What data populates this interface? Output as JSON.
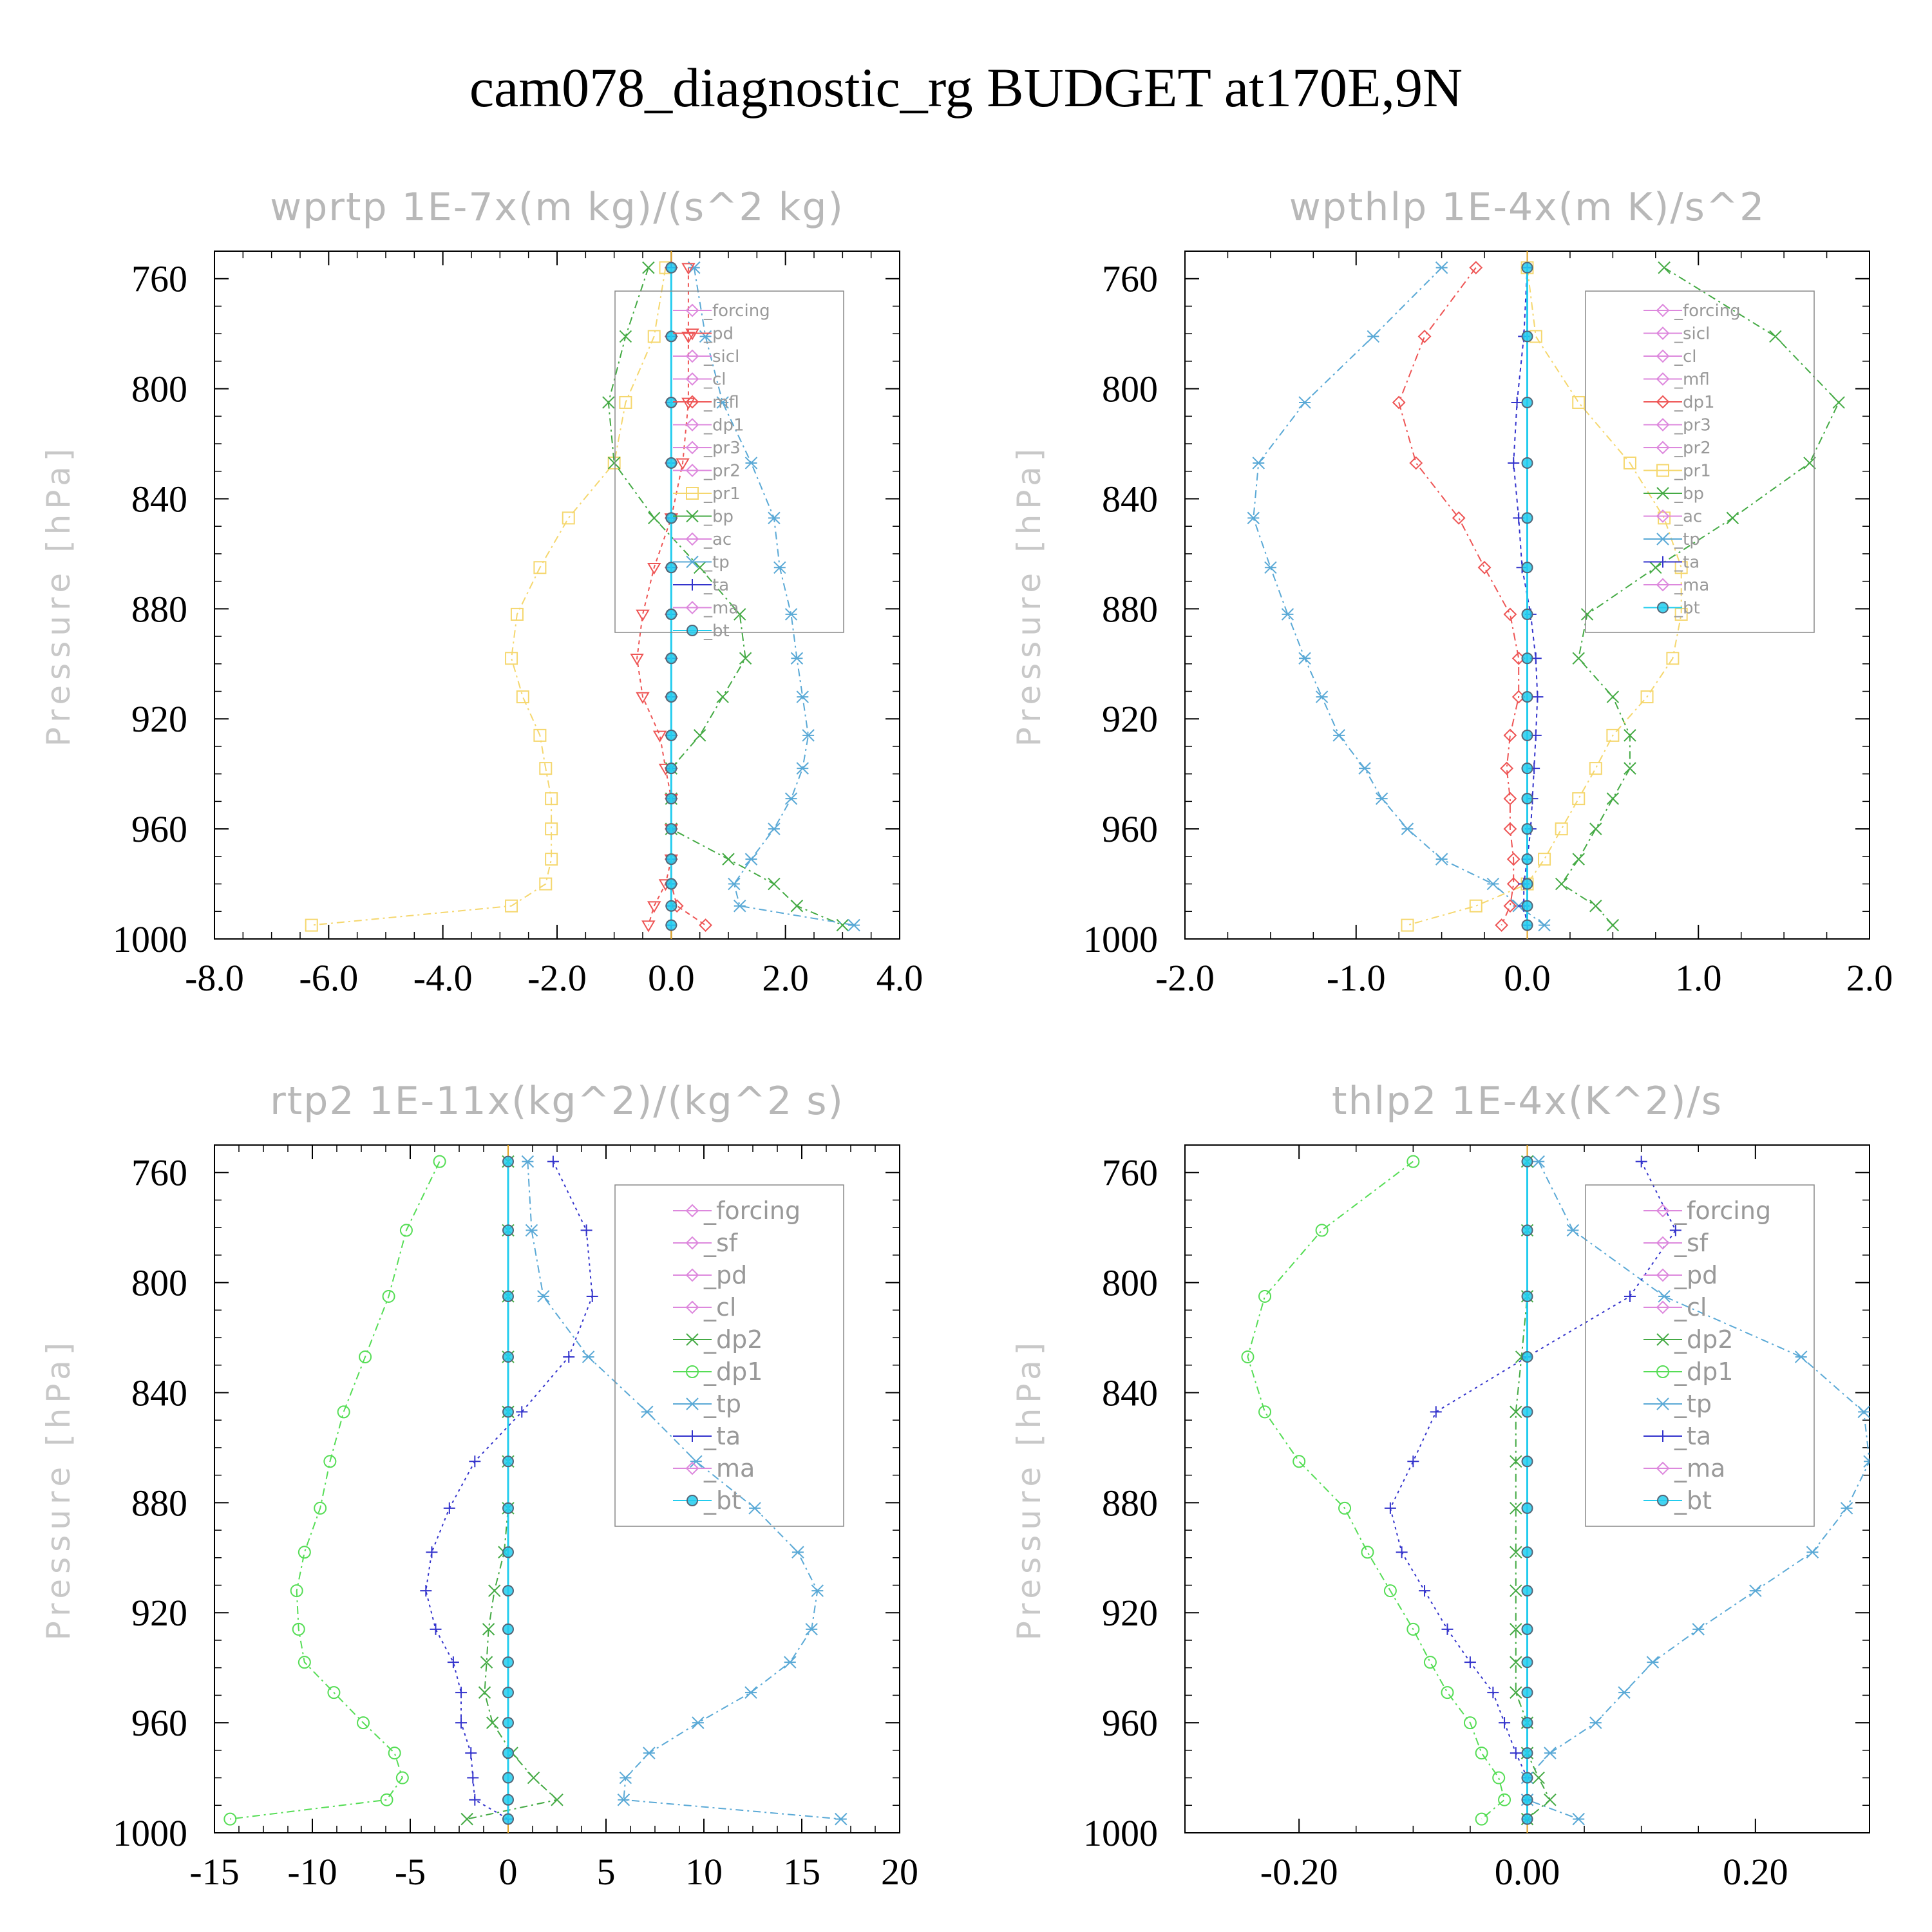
{
  "title": "cam078_diagnostic_rg  BUDGET at170E,9N",
  "ylabel": "Pressure [hPa]",
  "y_ticks": [
    760,
    800,
    840,
    880,
    920,
    960,
    1000
  ],
  "levels": [
    756,
    781,
    805,
    827,
    847,
    865,
    882,
    898,
    912,
    926,
    938,
    949,
    960,
    971,
    980,
    988,
    995
  ],
  "chart_data": [
    {
      "type": "line",
      "title": "wprtp  1E-7x(m kg)/(s^2 kg)",
      "ylabel": "Pressure [hPa]",
      "xlim": [
        -8,
        4
      ],
      "ylim": [
        1000,
        750
      ],
      "x_ticks": [
        "-8.0",
        "-6.0",
        "-4.0",
        "-2.0",
        "0.0",
        "2.0",
        "4.0"
      ],
      "x_tick_values": [
        -8,
        -6,
        -4,
        -2,
        0,
        2,
        4
      ],
      "legend": [
        "_forcing",
        "_pd",
        "_sicl",
        "_cl",
        "_mfl",
        "_dp1",
        "_pr3",
        "_pr2",
        "_pr1",
        "_bp",
        "_ac",
        "_tp",
        "_ta",
        "_ma",
        "_bt"
      ],
      "legend_font": "small",
      "series": [
        {
          "name": "_pr1",
          "color": "#f5d76e",
          "marker": "square",
          "dash": "12 6 3 6",
          "x": [
            -0.1,
            -0.3,
            -0.8,
            -1.0,
            -1.8,
            -2.3,
            -2.7,
            -2.8,
            -2.6,
            -2.3,
            -2.2,
            -2.1,
            -2.1,
            -2.1,
            -2.2,
            -2.8,
            -6.3
          ]
        },
        {
          "name": "_bp",
          "color": "#44aa44",
          "marker": "x",
          "dash": "12 6 3 6",
          "x": [
            -0.4,
            -0.8,
            -1.1,
            -1.0,
            -0.3,
            0.5,
            1.2,
            1.3,
            0.9,
            0.5,
            0.0,
            0.0,
            0.0,
            1.0,
            1.8,
            2.2,
            3.0
          ]
        },
        {
          "name": "_tp",
          "color": "#5aa9d6",
          "marker": "asterisk",
          "dash": "12 6 3 6",
          "x": [
            0.4,
            0.6,
            0.9,
            1.4,
            1.8,
            1.9,
            2.1,
            2.2,
            2.3,
            2.4,
            2.3,
            2.1,
            1.8,
            1.4,
            1.1,
            1.2,
            3.2
          ]
        },
        {
          "name": "_pd",
          "color": "#ee5555",
          "marker": "triangle-down",
          "dash": "6 6",
          "x": [
            0.3,
            0.3,
            0.3,
            0.2,
            0.0,
            -0.3,
            -0.5,
            -0.6,
            -0.5,
            -0.2,
            -0.1,
            0.0,
            0.0,
            0.0,
            -0.1,
            -0.3,
            -0.4
          ]
        },
        {
          "name": "_mfl",
          "color": "#ee5555",
          "marker": "diamond",
          "dash": "8 6",
          "x": [
            0.0,
            0.0,
            0.0,
            0.0,
            0.0,
            0.0,
            0.0,
            0.0,
            0.0,
            0.0,
            0.0,
            0.0,
            0.0,
            0.0,
            0.0,
            0.1,
            0.6
          ]
        },
        {
          "name": "_ta",
          "color": "#3333cc",
          "marker": "plus",
          "dash": "",
          "x": [
            0.0,
            0.0,
            0.0,
            0.0,
            0.0,
            0.0,
            0.0,
            0.0,
            0.0,
            0.0,
            0.0,
            0.0,
            0.0,
            0.0,
            0.0,
            0.0,
            0.0
          ]
        },
        {
          "name": "_bt",
          "color": "#22ccee",
          "marker": "dot",
          "dash": "",
          "x": [
            0.0,
            0.0,
            0.0,
            0.0,
            0.0,
            0.0,
            0.0,
            0.0,
            0.0,
            0.0,
            0.0,
            0.0,
            0.0,
            0.0,
            0.0,
            0.0,
            0.0
          ]
        }
      ]
    },
    {
      "type": "line",
      "title": "wpthlp  1E-4x(m K)/s^2",
      "ylabel": "Pressure [hPa]",
      "xlim": [
        -2,
        2
      ],
      "ylim": [
        1000,
        750
      ],
      "x_ticks": [
        "-2.0",
        "-1.0",
        "0.0",
        "1.0",
        "2.0"
      ],
      "x_tick_values": [
        -2,
        -1,
        0,
        1,
        2
      ],
      "legend": [
        "_forcing",
        "_sicl",
        "_cl",
        "_mfl",
        "_dp1",
        "_pr3",
        "_pr2",
        "_pr1",
        "_bp",
        "_ac",
        "_tp",
        "_ta",
        "_ma",
        "_bt"
      ],
      "legend_font": "small",
      "series": [
        {
          "name": "_tp",
          "color": "#5aa9d6",
          "marker": "asterisk",
          "dash": "12 6 3 6",
          "x": [
            -0.5,
            -0.9,
            -1.3,
            -1.57,
            -1.6,
            -1.5,
            -1.4,
            -1.3,
            -1.2,
            -1.1,
            -0.95,
            -0.85,
            -0.7,
            -0.5,
            -0.2,
            -0.05,
            0.1
          ]
        },
        {
          "name": "_bp",
          "color": "#44aa44",
          "marker": "x",
          "dash": "12 6 3 6",
          "x": [
            0.8,
            1.45,
            1.82,
            1.65,
            1.2,
            0.75,
            0.35,
            0.3,
            0.5,
            0.6,
            0.6,
            0.5,
            0.4,
            0.3,
            0.2,
            0.4,
            0.5
          ]
        },
        {
          "name": "_pr1",
          "color": "#f5d76e",
          "marker": "square",
          "dash": "12 6 3 6",
          "x": [
            0.0,
            0.05,
            0.3,
            0.6,
            0.8,
            0.9,
            0.9,
            0.85,
            0.7,
            0.5,
            0.4,
            0.3,
            0.2,
            0.1,
            0.0,
            -0.3,
            -0.7
          ]
        },
        {
          "name": "_dp1",
          "color": "#ee5555",
          "marker": "diamond",
          "dash": "12 6 3 6",
          "x": [
            -0.3,
            -0.6,
            -0.75,
            -0.65,
            -0.4,
            -0.25,
            -0.1,
            -0.05,
            -0.05,
            -0.1,
            -0.12,
            -0.1,
            -0.1,
            -0.08,
            -0.08,
            -0.1,
            -0.15
          ]
        },
        {
          "name": "_ta",
          "color": "#3333cc",
          "marker": "plus",
          "dash": "6 6",
          "x": [
            0.0,
            -0.02,
            -0.06,
            -0.08,
            -0.05,
            -0.03,
            0.02,
            0.05,
            0.06,
            0.05,
            0.04,
            0.03,
            0.02,
            0.0,
            -0.02,
            -0.02,
            0.0
          ]
        },
        {
          "name": "_bt",
          "color": "#22ccee",
          "marker": "dot",
          "dash": "",
          "x": [
            0.0,
            0.0,
            0.0,
            0.0,
            0.0,
            0.0,
            0.0,
            0.0,
            0.0,
            0.0,
            0.0,
            0.0,
            0.0,
            0.0,
            0.0,
            0.0,
            0.0
          ]
        }
      ]
    },
    {
      "type": "line",
      "title": "rtp2  1E-11x(kg^2)/(kg^2 s)",
      "ylabel": "Pressure [hPa]",
      "xlim": [
        -15,
        20
      ],
      "ylim": [
        1000,
        750
      ],
      "x_ticks": [
        "-15",
        "-10",
        "-5",
        "0",
        "5",
        "10",
        "15",
        "20"
      ],
      "x_tick_values": [
        -15,
        -10,
        -5,
        0,
        5,
        10,
        15,
        20
      ],
      "legend": [
        "_forcing",
        "_sf",
        "_pd",
        "_cl",
        "_dp2",
        "_dp1",
        "_tp",
        "_ta",
        "_ma",
        "_bt"
      ],
      "legend_font": "big",
      "series": [
        {
          "name": "_dp1",
          "color": "#55dd55",
          "marker": "circle",
          "dash": "12 6 3 6",
          "x": [
            -3.5,
            -5.2,
            -6.1,
            -7.3,
            -8.4,
            -9.1,
            -9.6,
            -10.4,
            -10.8,
            -10.7,
            -10.4,
            -8.9,
            -7.4,
            -5.8,
            -5.4,
            -6.2,
            -14.2
          ]
        },
        {
          "name": "_tp",
          "color": "#5aa9d6",
          "marker": "asterisk",
          "dash": "12 6 3 6",
          "x": [
            1.0,
            1.2,
            1.8,
            4.1,
            7.1,
            9.6,
            12.6,
            14.8,
            15.8,
            15.5,
            14.4,
            12.4,
            9.7,
            7.2,
            6.0,
            5.9,
            17.0
          ]
        },
        {
          "name": "_ta",
          "color": "#3333cc",
          "marker": "plus",
          "dash": "4 6",
          "x": [
            2.3,
            4.0,
            4.3,
            3.1,
            0.7,
            -1.7,
            -3.0,
            -3.9,
            -4.2,
            -3.7,
            -2.8,
            -2.4,
            -2.4,
            -1.9,
            -1.8,
            -1.7,
            0.0
          ]
        },
        {
          "name": "_dp2",
          "color": "#44aa44",
          "marker": "x",
          "dash": "12 6 3 6",
          "x": [
            0.0,
            0.0,
            0.0,
            0.0,
            0.0,
            0.0,
            0.0,
            -0.2,
            -0.7,
            -1.0,
            -1.1,
            -1.2,
            -0.8,
            0.2,
            1.3,
            2.5,
            -2.1
          ]
        },
        {
          "name": "_bt",
          "color": "#22ccee",
          "marker": "dot",
          "dash": "",
          "x": [
            0.0,
            0.0,
            0.0,
            0.0,
            0.0,
            0.0,
            0.0,
            0.0,
            0.0,
            0.0,
            0.0,
            0.0,
            0.0,
            0.0,
            0.0,
            0.0,
            0.0
          ]
        }
      ]
    },
    {
      "type": "line",
      "title": "thlp2  1E-4x(K^2)/s",
      "ylabel": "Pressure [hPa]",
      "xlim": [
        -0.3,
        0.3
      ],
      "ylim": [
        1000,
        750
      ],
      "x_ticks": [
        "-0.20",
        "0.00",
        "0.20"
      ],
      "x_tick_values": [
        -0.2,
        0.0,
        0.2
      ],
      "legend": [
        "_forcing",
        "_sf",
        "_pd",
        "_cl",
        "_dp2",
        "_dp1",
        "_tp",
        "_ta",
        "_ma",
        "_bt"
      ],
      "legend_font": "big",
      "series": [
        {
          "name": "_dp1",
          "color": "#55dd55",
          "marker": "circle",
          "dash": "12 6 3 6",
          "x": [
            -0.1,
            -0.18,
            -0.23,
            -0.245,
            -0.23,
            -0.2,
            -0.16,
            -0.14,
            -0.12,
            -0.1,
            -0.085,
            -0.07,
            -0.05,
            -0.04,
            -0.025,
            -0.02,
            -0.04
          ]
        },
        {
          "name": "_tp",
          "color": "#5aa9d6",
          "marker": "asterisk",
          "dash": "12 6 3 6",
          "x": [
            0.01,
            0.04,
            0.12,
            0.24,
            0.295,
            0.3,
            0.28,
            0.25,
            0.2,
            0.15,
            0.11,
            0.085,
            0.06,
            0.02,
            0.0,
            0.0,
            0.045
          ]
        },
        {
          "name": "_ta",
          "color": "#3333cc",
          "marker": "plus",
          "dash": "4 6",
          "x": [
            0.1,
            0.13,
            0.09,
            0.0,
            -0.08,
            -0.1,
            -0.12,
            -0.11,
            -0.09,
            -0.07,
            -0.05,
            -0.03,
            -0.02,
            -0.01,
            0.0,
            0.0,
            0.0
          ]
        },
        {
          "name": "_dp2",
          "color": "#44aa44",
          "marker": "x",
          "dash": "12 6 3 6",
          "x": [
            0.0,
            0.0,
            0.0,
            -0.005,
            -0.01,
            -0.01,
            -0.01,
            -0.01,
            -0.01,
            -0.01,
            -0.01,
            -0.01,
            0.0,
            0.0,
            0.01,
            0.02,
            0.0
          ]
        },
        {
          "name": "_bt",
          "color": "#22ccee",
          "marker": "dot",
          "dash": "",
          "x": [
            0.0,
            0.0,
            0.0,
            0.0,
            0.0,
            0.0,
            0.0,
            0.0,
            0.0,
            0.0,
            0.0,
            0.0,
            0.0,
            0.0,
            0.0,
            0.0,
            0.0
          ]
        }
      ]
    }
  ]
}
